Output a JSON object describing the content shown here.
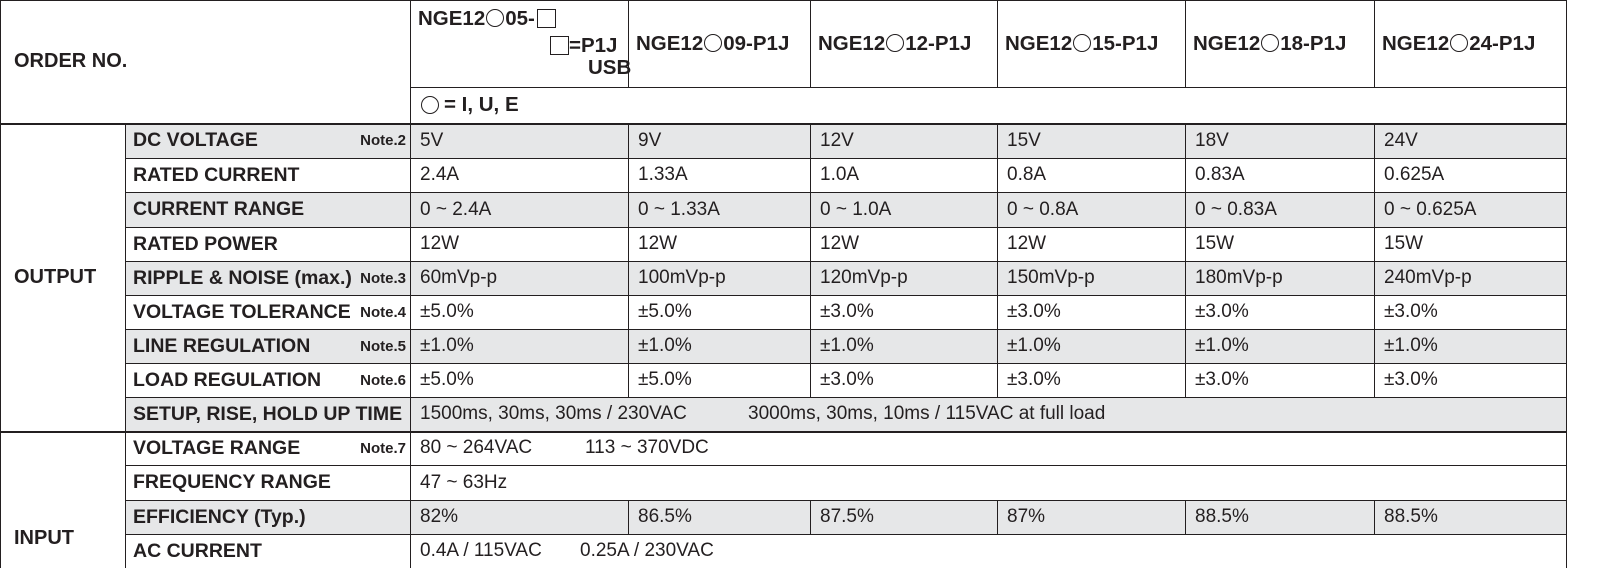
{
  "header": {
    "order_label": "ORDER NO.",
    "col1": {
      "part1": "NGE12",
      "part2": "05-",
      "part3": "=P1J",
      "part4": "USB"
    },
    "models": [
      {
        "pre": "NGE12",
        "post": "09-P1J"
      },
      {
        "pre": "NGE12",
        "post": "12-P1J"
      },
      {
        "pre": "NGE12",
        "post": "15-P1J"
      },
      {
        "pre": "NGE12",
        "post": "18-P1J"
      },
      {
        "pre": "NGE12",
        "post": "24-P1J"
      }
    ],
    "circle_legend": "= I, U, E"
  },
  "groups": {
    "output": "OUTPUT",
    "input": "INPUT"
  },
  "rows": {
    "dc_voltage": {
      "label": "DC VOLTAGE",
      "note": "Note.2",
      "values": [
        "5V",
        "9V",
        "12V",
        "15V",
        "18V",
        "24V"
      ]
    },
    "rated_current": {
      "label": "RATED CURRENT",
      "values": [
        "2.4A",
        "1.33A",
        "1.0A",
        "0.8A",
        "0.83A",
        "0.625A"
      ]
    },
    "current_range": {
      "label": "CURRENT RANGE",
      "values": [
        "0 ~ 2.4A",
        "0 ~ 1.33A",
        "0 ~ 1.0A",
        "0 ~ 0.8A",
        "0 ~ 0.83A",
        "0 ~ 0.625A"
      ]
    },
    "rated_power": {
      "label": "RATED POWER",
      "values": [
        "12W",
        "12W",
        "12W",
        "12W",
        "15W",
        "15W"
      ]
    },
    "ripple_noise": {
      "label": "RIPPLE & NOISE (max.)",
      "note": "Note.3",
      "values": [
        "60mVp-p",
        "100mVp-p",
        "120mVp-p",
        "150mVp-p",
        "180mVp-p",
        "240mVp-p"
      ]
    },
    "voltage_tolerance": {
      "label": "VOLTAGE TOLERANCE",
      "note": "Note.4",
      "values": [
        "±5.0%",
        "±5.0%",
        "±3.0%",
        "±3.0%",
        "±3.0%",
        "±3.0%"
      ]
    },
    "line_regulation": {
      "label": "LINE REGULATION",
      "note": "Note.5",
      "values": [
        "±1.0%",
        "±1.0%",
        "±1.0%",
        "±1.0%",
        "±1.0%",
        "±1.0%"
      ]
    },
    "load_regulation": {
      "label": "LOAD REGULATION",
      "note": "Note.6",
      "values": [
        "±5.0%",
        "±5.0%",
        "±3.0%",
        "±3.0%",
        "±3.0%",
        "±3.0%"
      ]
    },
    "setup_time": {
      "label": "SETUP, RISE, HOLD UP TIME",
      "value_a": "1500ms, 30ms, 30ms / 230VAC",
      "value_b": "3000ms, 30ms, 10ms / 115VAC at full load"
    },
    "voltage_range": {
      "label": "VOLTAGE RANGE",
      "note": "Note.7",
      "value_a": "80 ~ 264VAC",
      "value_b": "113 ~ 370VDC"
    },
    "frequency_range": {
      "label": "FREQUENCY RANGE",
      "value": "47 ~ 63Hz"
    },
    "efficiency": {
      "label": "EFFICIENCY (Typ.)",
      "values": [
        "82%",
        "86.5%",
        "87.5%",
        "87%",
        "88.5%",
        "88.5%"
      ]
    },
    "ac_current": {
      "label": "AC CURRENT",
      "value_a": "0.4A / 115VAC",
      "value_b": "0.25A / 230VAC"
    }
  },
  "colors": {
    "shade": "#e6e7e8",
    "line": "#231f20"
  }
}
